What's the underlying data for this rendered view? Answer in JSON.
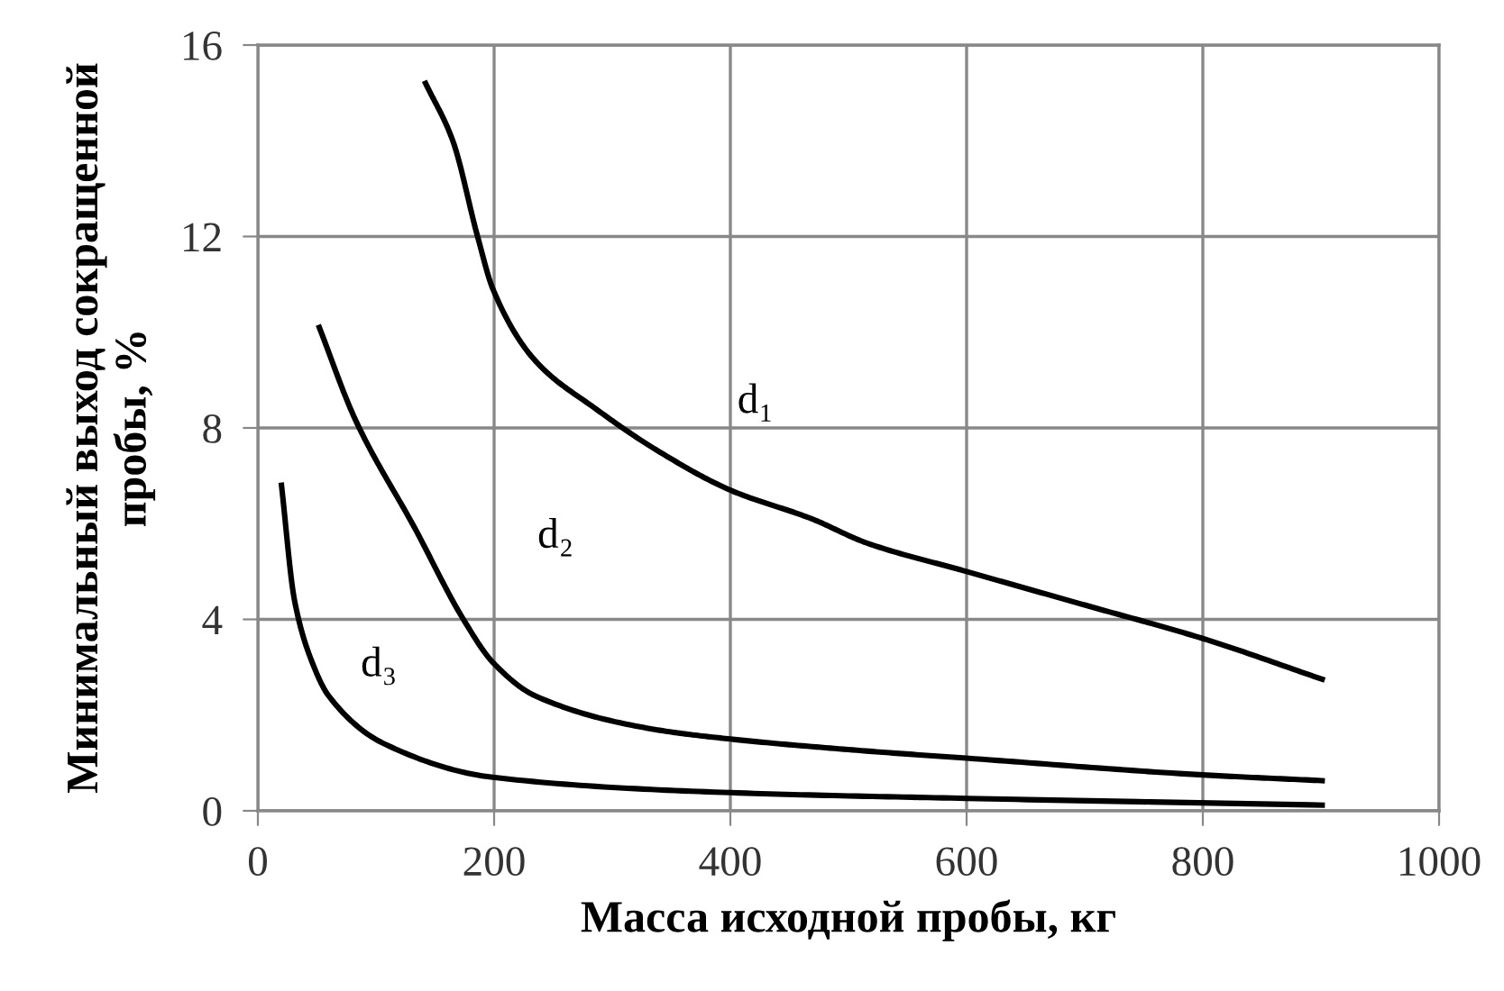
{
  "chart_data": {
    "type": "line",
    "xlabel": "Масса исходной пробы, кг",
    "ylabel": "Минимальный выход сокращенной\nпробы, %",
    "xlim": [
      0,
      1000
    ],
    "xticks": [
      0,
      200,
      400,
      600,
      800,
      1000
    ],
    "ylim": [
      0,
      16
    ],
    "yticks": [
      0,
      4,
      8,
      12,
      16
    ],
    "grid": true,
    "marker": "none",
    "line_style": "solid",
    "series": [
      {
        "name": "d₁",
        "color": "#000000",
        "x": [
          142,
          165,
          186,
          199,
          235,
          286,
          340,
          400,
          469,
          515,
          600,
          700,
          800,
          901
        ],
        "values": [
          15.2,
          14.0,
          12.0,
          10.9,
          9.4,
          8.4,
          7.5,
          6.7,
          6.1,
          5.6,
          5.0,
          4.3,
          3.6,
          2.75
        ]
      },
      {
        "name": "d₂",
        "color": "#000000",
        "x": [
          52,
          82,
          133,
          174,
          199,
          235,
          336,
          400,
          515,
          600,
          800,
          901
        ],
        "values": [
          10.1,
          8.2,
          5.9,
          4.0,
          3.1,
          2.4,
          1.7,
          1.5,
          1.25,
          1.1,
          0.75,
          0.63
        ]
      },
      {
        "name": "d₃",
        "color": "#000000",
        "x": [
          20,
          31,
          46,
          60,
          107,
          199,
          400,
          600,
          901
        ],
        "values": [
          6.8,
          4.4,
          3.1,
          2.4,
          1.4,
          0.7,
          0.38,
          0.26,
          0.12
        ]
      }
    ]
  }
}
